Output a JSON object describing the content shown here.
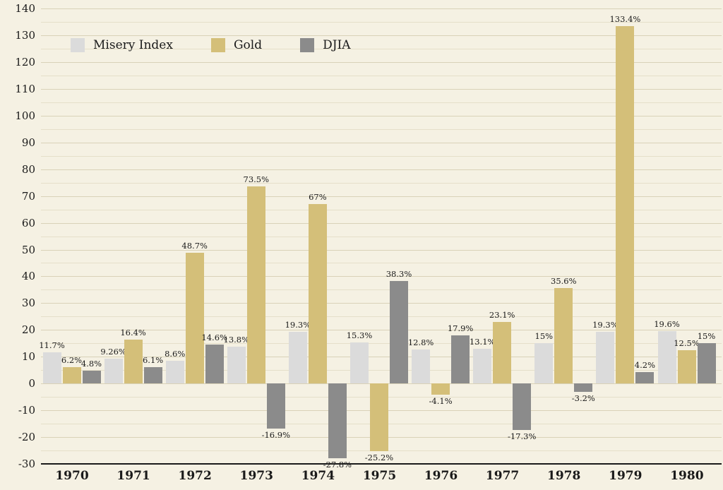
{
  "canvas": {
    "background": "#f5f1e3"
  },
  "chart_data": {
    "type": "bar",
    "title": "",
    "xlabel": "",
    "ylabel": "",
    "categories": [
      "1970",
      "1971",
      "1972",
      "1973",
      "1974",
      "1975",
      "1976",
      "1977",
      "1978",
      "1979",
      "1980"
    ],
    "series": [
      {
        "name": "Misery Index",
        "color": "#dbdbdb",
        "values": [
          11.7,
          9.26,
          8.6,
          13.8,
          19.3,
          15.3,
          12.8,
          13.1,
          15,
          19.3,
          19.6
        ],
        "labels": [
          "11.7%",
          "9.26%",
          "8.6%",
          "13.8%",
          "19.3%",
          "15.3%",
          "12.8%",
          "13.1%",
          "15%",
          "19.3%",
          "19.6%"
        ]
      },
      {
        "name": "Gold",
        "color": "#d4bf79",
        "values": [
          6.2,
          16.4,
          48.7,
          73.5,
          67,
          -25.2,
          -4.1,
          23.1,
          35.6,
          133.4,
          12.5
        ],
        "labels": [
          "6.2%",
          "16.4%",
          "48.7%",
          "73.5%",
          "67%",
          "-25.2%",
          "-4.1%",
          "23.1%",
          "35.6%",
          "133.4%",
          "12.5%"
        ]
      },
      {
        "name": "DJIA",
        "color": "#8b8b8b",
        "values": [
          4.8,
          6.1,
          14.6,
          -16.9,
          -27.8,
          38.3,
          17.9,
          -17.3,
          -3.2,
          4.2,
          15
        ],
        "labels": [
          "4.8%",
          "6.1%",
          "14.6%",
          "-16.9%",
          "-27.8%",
          "38.3%",
          "17.9%",
          "-17.3%",
          "-3.2%",
          "4.2%",
          "15%"
        ]
      }
    ],
    "ylim": [
      -30,
      140
    ],
    "ytick_step": 10,
    "grid_minor_step": 5,
    "grid": true,
    "legend_position": "top-left"
  }
}
